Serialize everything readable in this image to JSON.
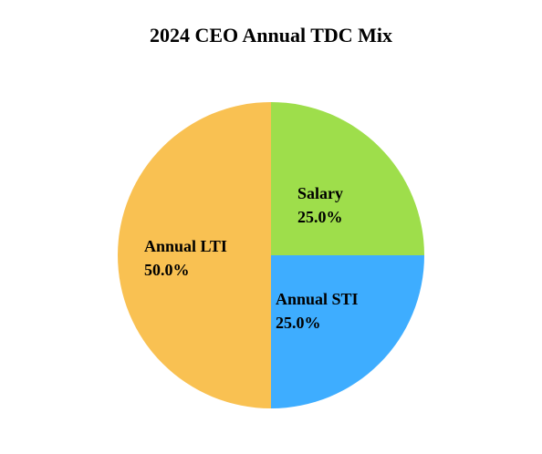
{
  "chart_data": {
    "type": "pie",
    "title": "2024 CEO Annual TDC Mix",
    "start_angle": "top, clockwise",
    "categories": [
      "Salary",
      "Annual STI",
      "Annual LTI"
    ],
    "values": [
      25.0,
      25.0,
      50.0
    ],
    "value_labels": [
      "25.0%",
      "25.0%",
      "50.0%"
    ],
    "colors": [
      "#9ede4b",
      "#3eadff",
      "#f9c152"
    ],
    "legend": "none"
  }
}
